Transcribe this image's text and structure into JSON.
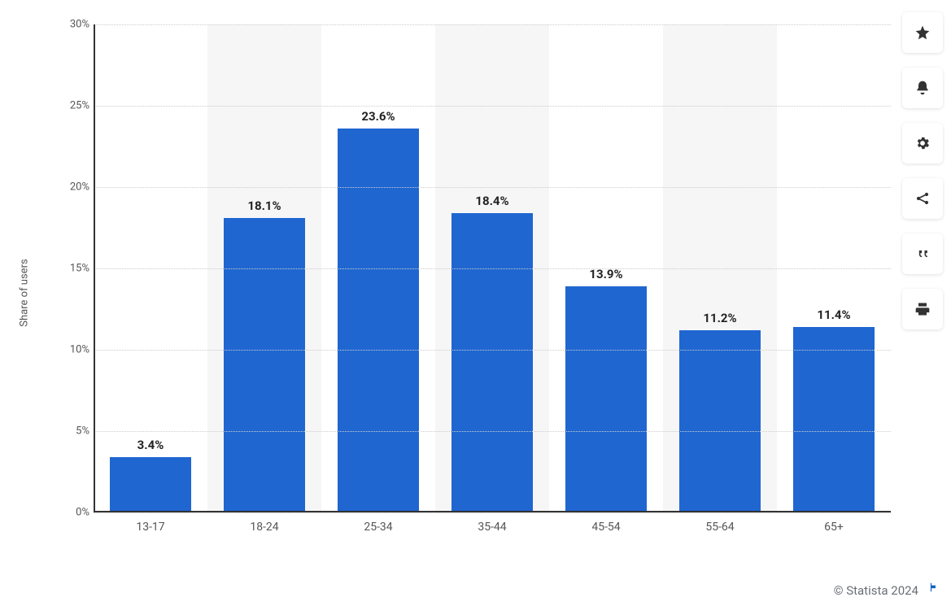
{
  "chart": {
    "type": "bar",
    "y_label": "Share of users",
    "categories": [
      "13-17",
      "18-24",
      "25-34",
      "35-44",
      "45-54",
      "55-64",
      "65+"
    ],
    "values": [
      3.4,
      18.1,
      23.6,
      18.4,
      13.9,
      11.2,
      11.4
    ],
    "value_labels": [
      "3.4%",
      "18.1%",
      "23.6%",
      "18.4%",
      "13.9%",
      "11.2%",
      "11.4%"
    ],
    "bar_color": "#1f66d1",
    "ylim": [
      0,
      30
    ],
    "ytick_step": 5,
    "y_ticks": [
      "0%",
      "5%",
      "10%",
      "15%",
      "20%",
      "25%",
      "30%"
    ],
    "grid_color": "#cccccc",
    "background_color": "#ffffff",
    "alt_band_color": "#f6f6f6",
    "value_label_fontsize": 15,
    "value_label_fontweight": 700,
    "tick_fontsize": 13,
    "axis_color": "#333333",
    "bar_width_ratio": 0.72
  },
  "side_buttons": [
    {
      "name": "favorite",
      "icon": "star"
    },
    {
      "name": "notifications",
      "icon": "bell"
    },
    {
      "name": "settings",
      "icon": "gear"
    },
    {
      "name": "share",
      "icon": "share"
    },
    {
      "name": "cite",
      "icon": "quote"
    },
    {
      "name": "print",
      "icon": "print"
    }
  ],
  "attribution": "© Statista 2024",
  "flag": {
    "name": "report",
    "color": "#1560c0"
  }
}
